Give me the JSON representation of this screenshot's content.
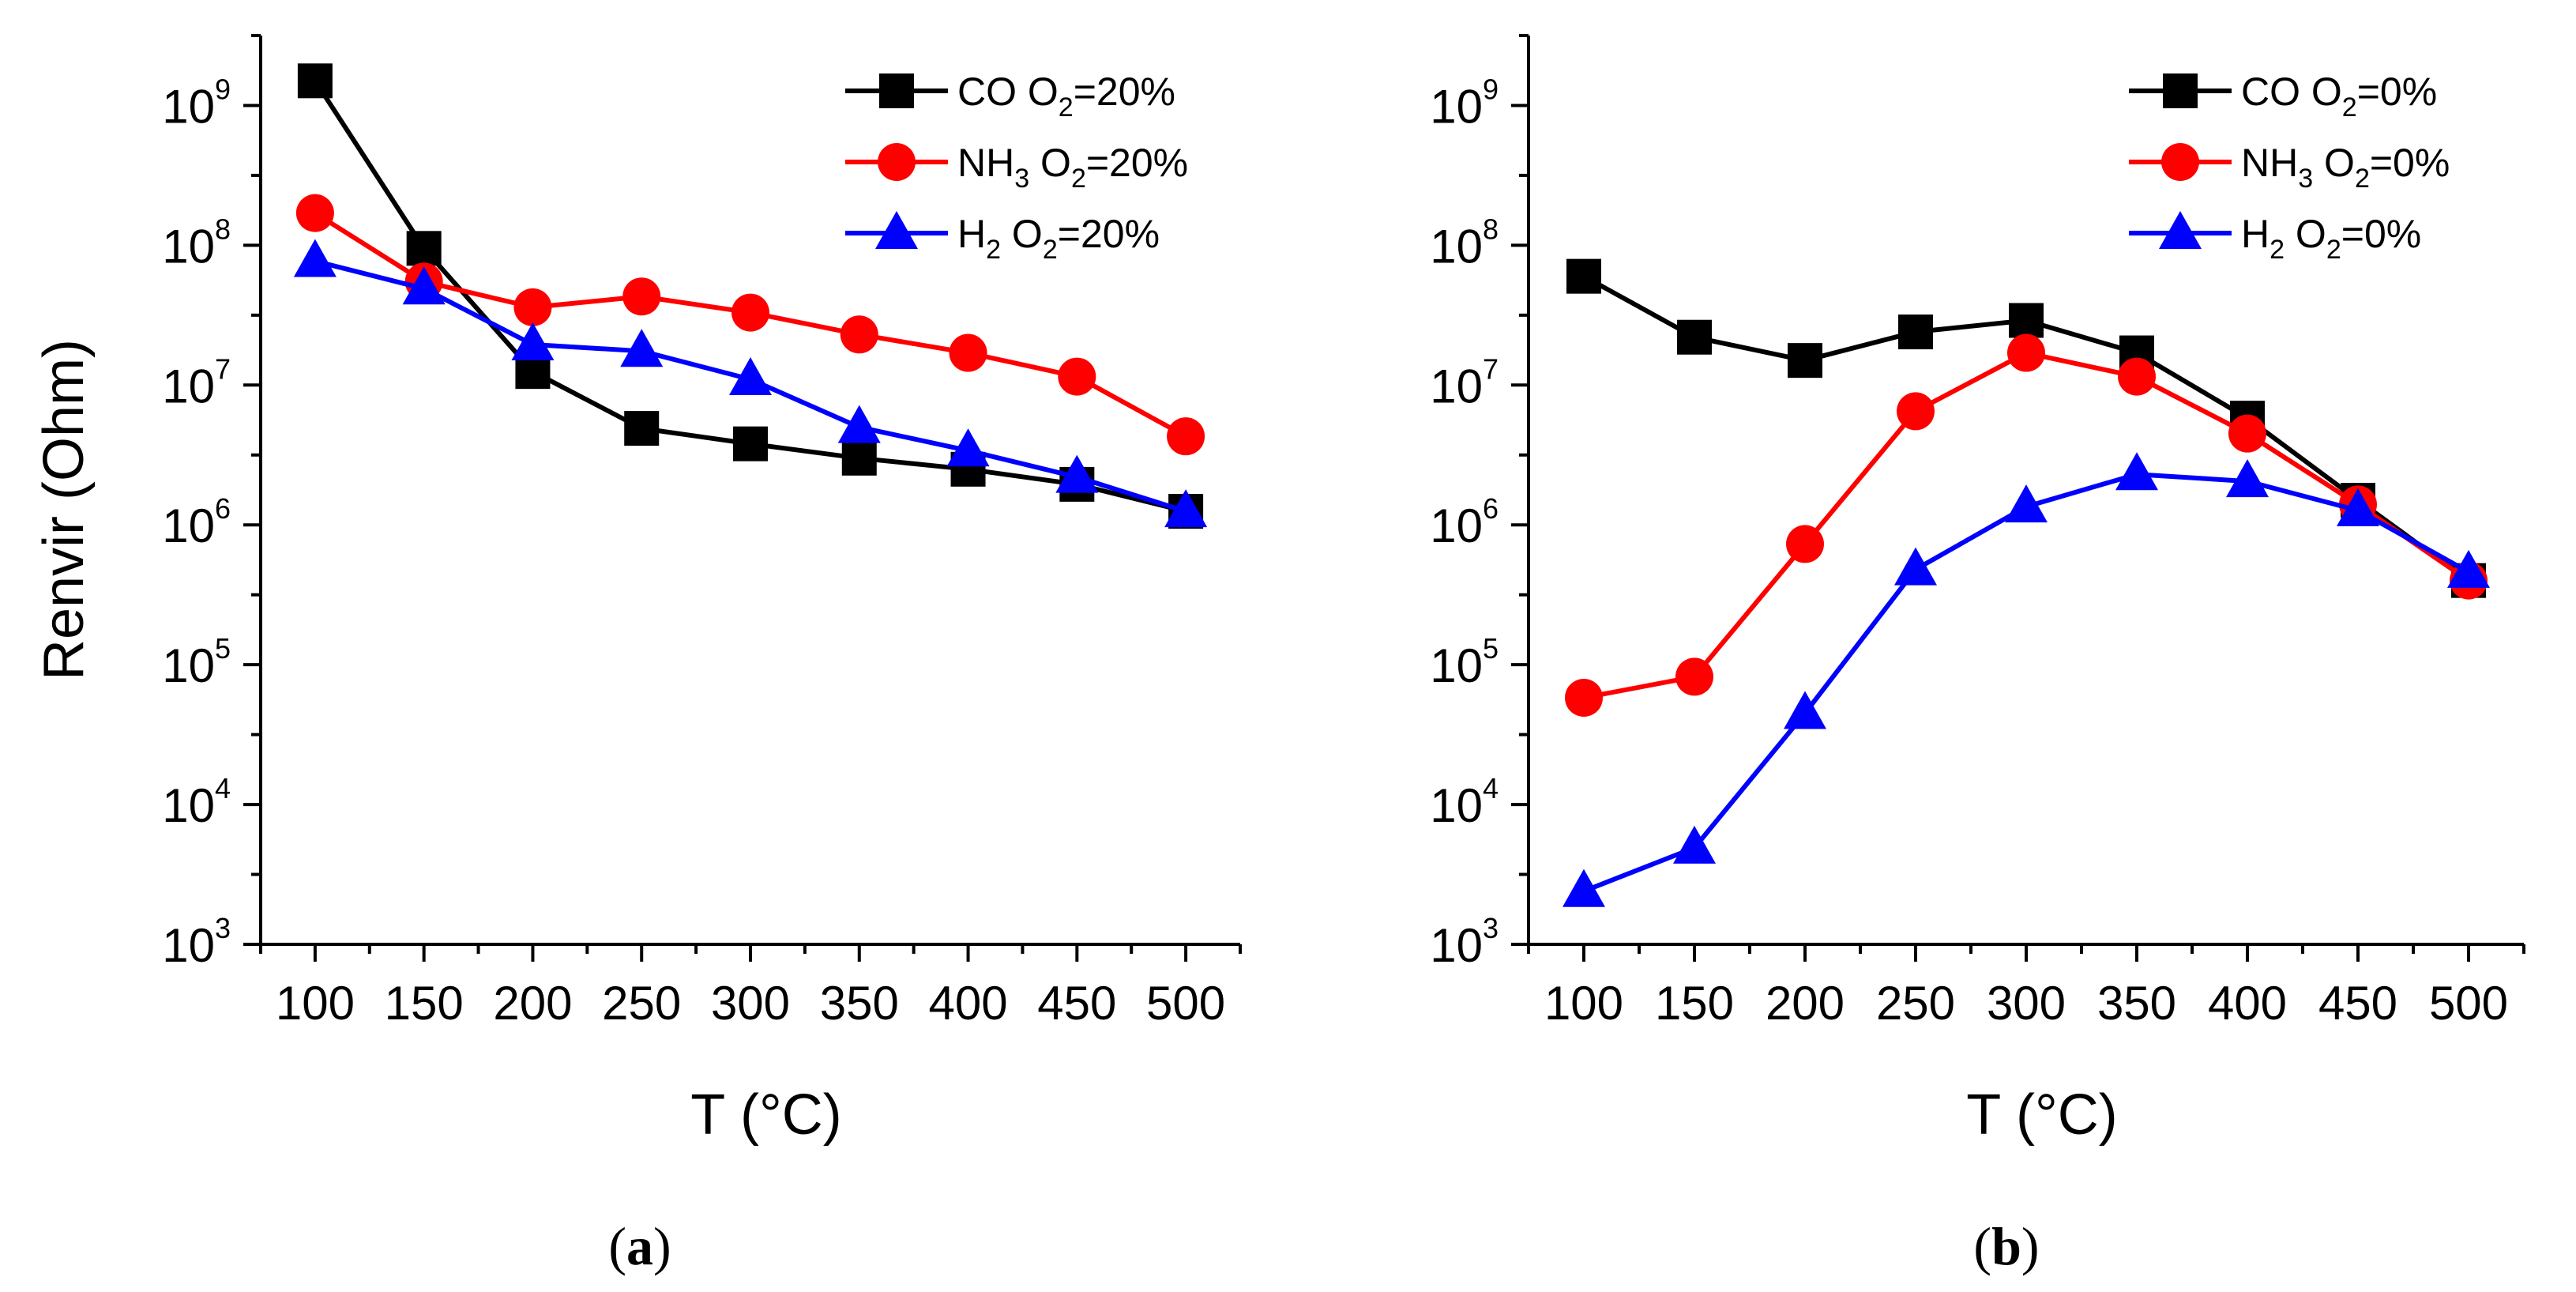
{
  "chart_data": [
    {
      "type": "line",
      "panel_label": "a",
      "x": [
        100,
        150,
        200,
        250,
        300,
        350,
        400,
        450,
        500
      ],
      "x_tick_labels": [
        "100",
        "150",
        "200",
        "250",
        "300",
        "350",
        "400",
        "450",
        "500"
      ],
      "xlim": [
        75,
        525
      ],
      "ylim_log10": [
        3,
        9.5
      ],
      "y_scale": "log",
      "y_tick_exponents": [
        "3",
        "4",
        "5",
        "6",
        "7",
        "8",
        "9"
      ],
      "y_tick_base": "10",
      "xlabel": "T (°C)",
      "ylabel": "Renvir (Ohm)",
      "legend_location": "top-right",
      "series": [
        {
          "label_main": "CO O",
          "label_sub": "2",
          "label_rest": "=20%",
          "label_pre": "",
          "label_pre_sub": "",
          "color": "#000000",
          "marker": "square",
          "values": [
            1500000000,
            95000000,
            12500000,
            4900000,
            3800000,
            3000000,
            2500000,
            1950000,
            1250000
          ]
        },
        {
          "label_main": " O",
          "label_sub": "2",
          "label_rest": "=20%",
          "label_pre": "NH",
          "label_pre_sub": "3",
          "color": "#ff0000",
          "marker": "circle",
          "values": [
            170000000,
            55000000,
            36000000,
            43000000,
            33000000,
            23000000,
            17000000,
            11500000,
            4300000
          ]
        },
        {
          "label_main": " O",
          "label_sub": "2",
          "label_rest": "=20%",
          "label_pre": "H",
          "label_pre_sub": "2",
          "color": "#0000ff",
          "marker": "triangle",
          "values": [
            77000000,
            49000000,
            19500000,
            17500000,
            11000000,
            5000000,
            3400000,
            2200000,
            1250000
          ]
        }
      ]
    },
    {
      "type": "line",
      "panel_label": "b",
      "x": [
        100,
        150,
        200,
        250,
        300,
        350,
        400,
        450,
        500
      ],
      "x_tick_labels": [
        "100",
        "150",
        "200",
        "250",
        "300",
        "350",
        "400",
        "450",
        "500"
      ],
      "xlim": [
        75,
        525
      ],
      "ylim_log10": [
        3,
        9.5
      ],
      "y_scale": "log",
      "y_tick_exponents": [
        "3",
        "4",
        "5",
        "6",
        "7",
        "8",
        "9"
      ],
      "y_tick_base": "10",
      "xlabel": "T (°C)",
      "ylabel": "",
      "legend_location": "top-right",
      "series": [
        {
          "label_main": "CO O",
          "label_sub": "2",
          "label_rest": "=0%",
          "label_pre": "",
          "label_pre_sub": "",
          "color": "#000000",
          "marker": "square",
          "values": [
            60000000,
            22000000,
            15000000,
            24000000,
            29000000,
            17000000,
            5800000,
            1500000,
            400000
          ]
        },
        {
          "label_main": " O",
          "label_sub": "2",
          "label_rest": "=0%",
          "label_pre": "NH",
          "label_pre_sub": "3",
          "color": "#ff0000",
          "marker": "circle",
          "values": [
            58000,
            82000,
            730000,
            6500000,
            17000000,
            11500000,
            4500000,
            1400000,
            400000
          ]
        },
        {
          "label_main": " O",
          "label_sub": "2",
          "label_rest": "=0%",
          "label_pre": "H",
          "label_pre_sub": "2",
          "color": "#0000ff",
          "marker": "triangle",
          "values": [
            2400,
            4900,
            45000,
            480000,
            1350000,
            2300000,
            2050000,
            1270000,
            460000
          ]
        }
      ]
    }
  ]
}
